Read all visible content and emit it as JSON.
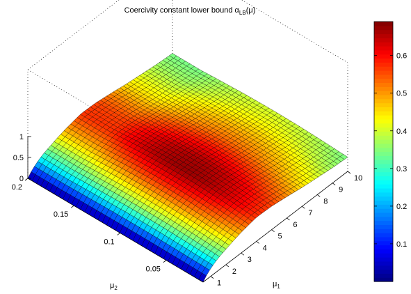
{
  "chart_data": {
    "type": "surface",
    "title": "Coercivity constant lower bound α",
    "title_subscript": "LB",
    "title_suffix": "(μ)",
    "x_axis": {
      "label": "μ",
      "label_subscript": "1",
      "range": [
        0.5,
        10
      ],
      "ticks": [
        "1",
        "2",
        "3",
        "4",
        "5",
        "6",
        "7",
        "8",
        "9",
        "10"
      ]
    },
    "y_axis": {
      "label": "μ",
      "label_subscript": "2",
      "range": [
        0.01,
        0.2
      ],
      "ticks": [
        "0.05",
        "0.1",
        "0.15",
        "0.2"
      ]
    },
    "z_axis": {
      "range": [
        0,
        1
      ],
      "ticks": [
        "0",
        "0.5",
        "1"
      ]
    },
    "colorbar": {
      "colormap": "jet",
      "range": [
        0.0,
        0.69
      ],
      "ticks": [
        "0.1",
        "0.2",
        "0.3",
        "0.4",
        "0.5",
        "0.6"
      ]
    },
    "surface_values_at_mu1_ridge": {
      "mu1": [
        1,
        2,
        3,
        4,
        5,
        6,
        7,
        8,
        9,
        10
      ],
      "z": [
        0.45,
        0.5,
        0.6,
        0.68,
        0.66,
        0.6,
        0.53,
        0.48,
        0.43,
        0.4
      ]
    },
    "grid": true
  }
}
